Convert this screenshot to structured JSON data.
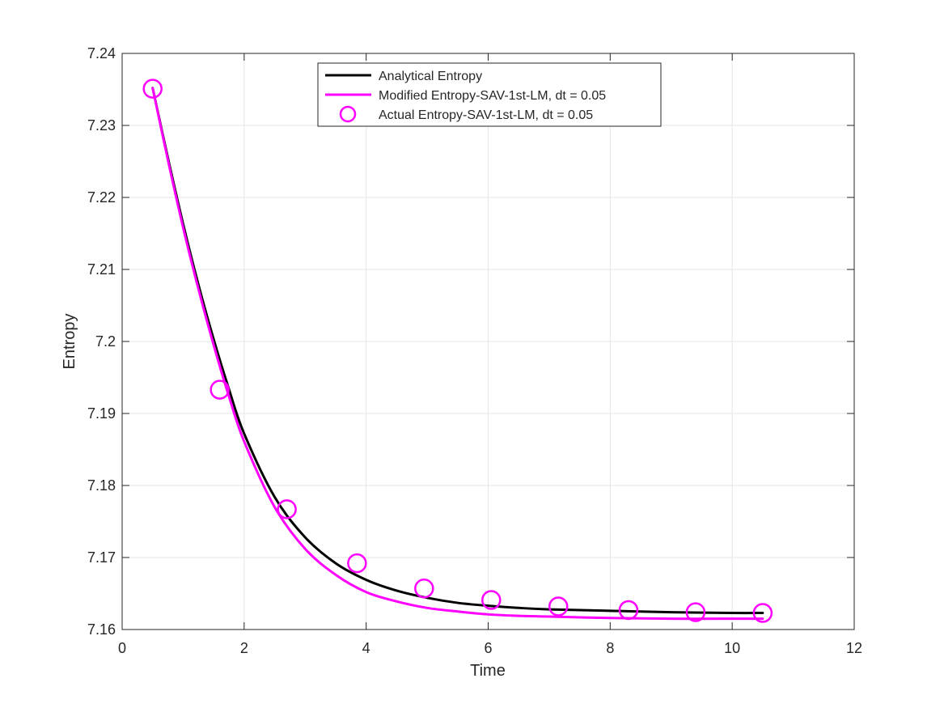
{
  "chart_data": {
    "type": "line",
    "xlabel": "Time",
    "ylabel": "Entropy",
    "xlim": [
      0,
      12
    ],
    "ylim": [
      7.16,
      7.24
    ],
    "x_ticks": [
      0,
      2,
      4,
      6,
      8,
      10,
      12
    ],
    "y_ticks": [
      7.16,
      7.17,
      7.18,
      7.19,
      7.2,
      7.21,
      7.22,
      7.23,
      7.24
    ],
    "x_tick_labels": [
      "0",
      "2",
      "4",
      "6",
      "8",
      "10",
      "12"
    ],
    "y_tick_labels": [
      "7.16",
      "7.17",
      "7.18",
      "7.19",
      "7.2",
      "7.21",
      "7.22",
      "7.23",
      "7.24"
    ],
    "grid": true,
    "legend_position": "top-center",
    "series": [
      {
        "name": "Analytical Entropy",
        "style": "line",
        "color": "#000000",
        "x": [
          0.5,
          0.75,
          1.0,
          1.25,
          1.5,
          1.75,
          2.0,
          2.5,
          3.0,
          3.5,
          4.0,
          4.5,
          5.0,
          5.5,
          6.0,
          6.5,
          7.0,
          8.0,
          9.0,
          10.0,
          10.5
        ],
        "y": [
          7.2352,
          7.2255,
          7.2163,
          7.2079,
          7.2003,
          7.1934,
          7.1872,
          7.1784,
          7.1728,
          7.1692,
          7.1669,
          7.1654,
          7.1644,
          7.1637,
          7.1633,
          7.163,
          7.1628,
          7.1626,
          7.1624,
          7.1623,
          7.1623
        ]
      },
      {
        "name": "Modified Entropy-SAV-1st-LM, dt = 0.05",
        "style": "line",
        "color": "#ff00ff",
        "x": [
          0.5,
          0.75,
          1.0,
          1.25,
          1.5,
          1.75,
          2.0,
          2.5,
          3.0,
          3.5,
          4.0,
          4.5,
          5.0,
          5.5,
          6.0,
          6.5,
          7.0,
          8.0,
          9.0,
          10.0,
          10.5
        ],
        "y": [
          7.2352,
          7.2252,
          7.2158,
          7.2073,
          7.1995,
          7.1924,
          7.1861,
          7.177,
          7.1712,
          7.1676,
          7.1652,
          7.1639,
          7.163,
          7.1625,
          7.1621,
          7.1619,
          7.1618,
          7.1616,
          7.1615,
          7.1615,
          7.1615
        ]
      },
      {
        "name": "Actual Entropy-SAV-1st-LM, dt = 0.05",
        "style": "markers",
        "marker": "circle",
        "color": "#ff00ff",
        "x": [
          0.5,
          1.6,
          2.7,
          3.85,
          4.95,
          6.05,
          7.15,
          8.3,
          9.4,
          10.5
        ],
        "y": [
          7.2351,
          7.1933,
          7.1767,
          7.1692,
          7.1657,
          7.1641,
          7.1632,
          7.1627,
          7.1624,
          7.1623
        ]
      }
    ]
  }
}
